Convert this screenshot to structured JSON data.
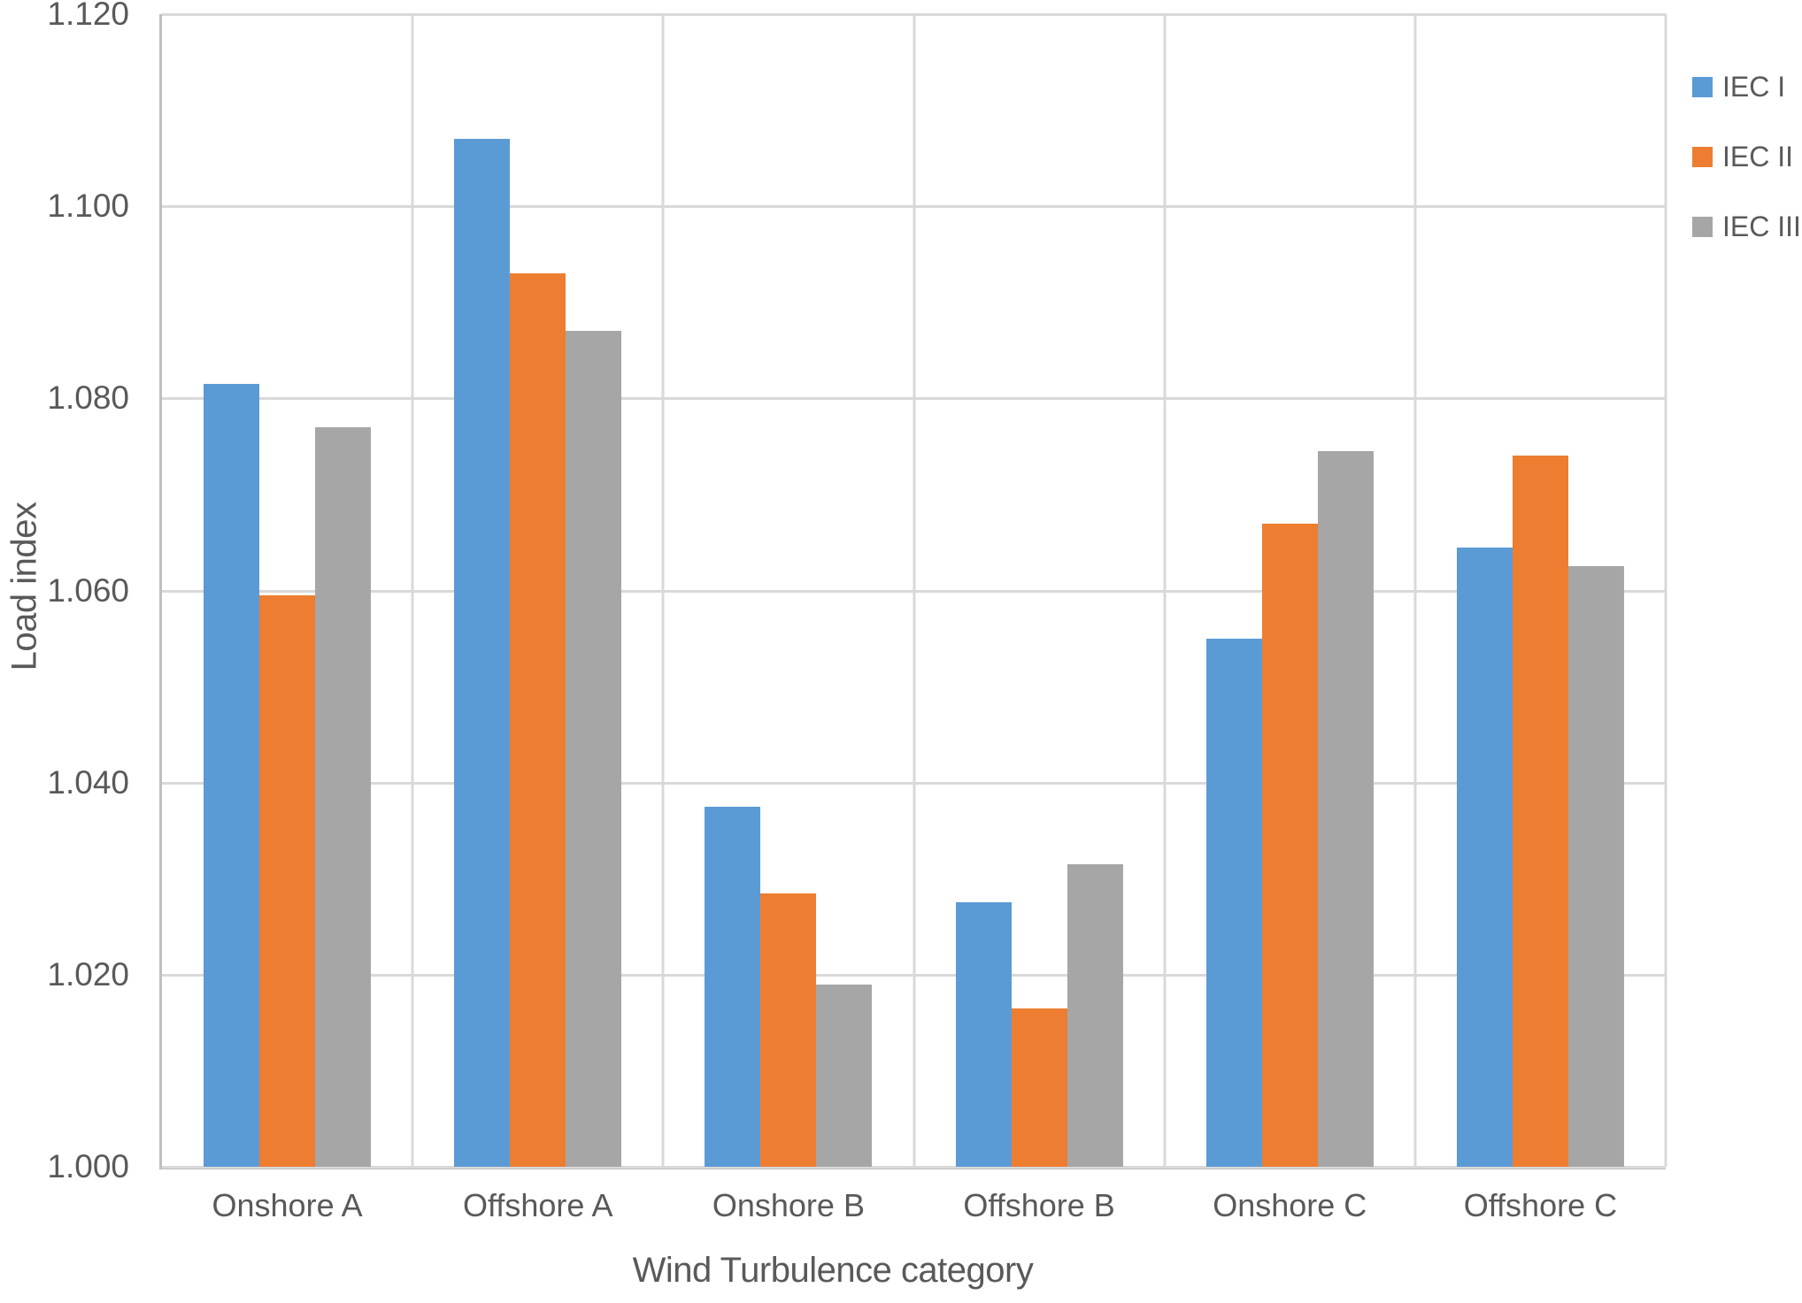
{
  "figure": {
    "background_color": "#FFFFFF",
    "text_color": "#595959",
    "gridline_color": "#D9D9D9",
    "axis_line_color": "#BFBFBF"
  },
  "chart_data": {
    "type": "bar",
    "title": "",
    "xlabel": "Wind Turbulence category",
    "ylabel": "Load index",
    "categories": [
      "Onshore A",
      "Offshore A",
      "Onshore B",
      "Offshore B",
      "Onshore C",
      "Offshore C"
    ],
    "series": [
      {
        "name": "IEC I",
        "color": "#5B9BD5",
        "values": [
          1.0815,
          1.107,
          1.0375,
          1.0275,
          1.055,
          1.0645
        ]
      },
      {
        "name": "IEC II",
        "color": "#ED7D31",
        "values": [
          1.0595,
          1.093,
          1.0285,
          1.0165,
          1.067,
          1.074
        ]
      },
      {
        "name": "IEC III",
        "color": "#A6A6A6",
        "values": [
          1.077,
          1.087,
          1.019,
          1.0315,
          1.0745,
          1.0625
        ]
      }
    ],
    "ylim": [
      1.0,
      1.12
    ],
    "ytick_step": 0.02,
    "yticks": [
      "1.000",
      "1.020",
      "1.040",
      "1.060",
      "1.080",
      "1.100",
      "1.120"
    ],
    "grid": true,
    "vertical_grid": true,
    "legend_position": "top-right"
  }
}
